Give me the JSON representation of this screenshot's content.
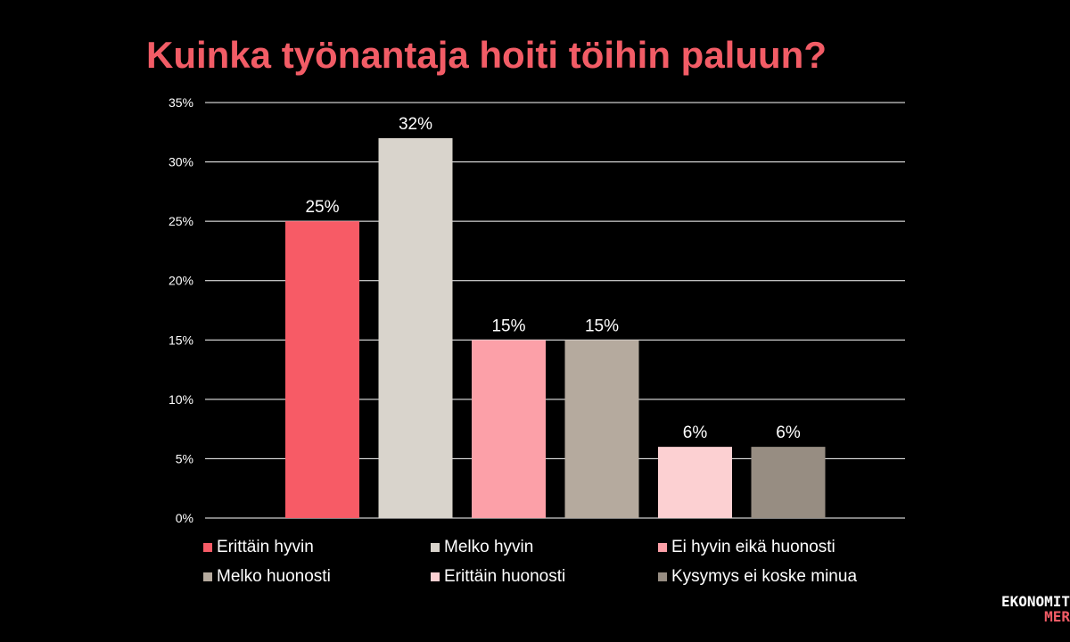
{
  "title": "Kuinka työnantaja hoiti töihin paluun?",
  "logo": {
    "line1": "EKONOMIT",
    "line2": "MER"
  },
  "colors": {
    "background": "#000000",
    "title": "#f25c66",
    "grid": "#ffffff",
    "text": "#ffffff"
  },
  "chart_data": {
    "type": "bar",
    "title": "Kuinka työnantaja hoiti töihin paluun?",
    "xlabel": "",
    "ylabel": "",
    "ylim": [
      0,
      35
    ],
    "yticks": [
      0,
      5,
      10,
      15,
      20,
      25,
      30,
      35
    ],
    "ytick_labels": [
      "0%",
      "5%",
      "10%",
      "15%",
      "20%",
      "25%",
      "30%",
      "35%"
    ],
    "grid": true,
    "legend_position": "bottom",
    "series": [
      {
        "name": "Erittäin hyvin",
        "value": 25,
        "label": "25%",
        "color": "#f75b66"
      },
      {
        "name": "Melko hyvin",
        "value": 32,
        "label": "32%",
        "color": "#d9d4cc"
      },
      {
        "name": "Ei hyvin eikä huonosti",
        "value": 15,
        "label": "15%",
        "color": "#fca0a8"
      },
      {
        "name": "Melko huonosti",
        "value": 15,
        "label": "15%",
        "color": "#b5aa9e"
      },
      {
        "name": "Erittäin huonosti",
        "value": 6,
        "label": "6%",
        "color": "#fcd0d2"
      },
      {
        "name": "Kysymys ei koske minua",
        "value": 6,
        "label": "6%",
        "color": "#978d82"
      }
    ]
  }
}
